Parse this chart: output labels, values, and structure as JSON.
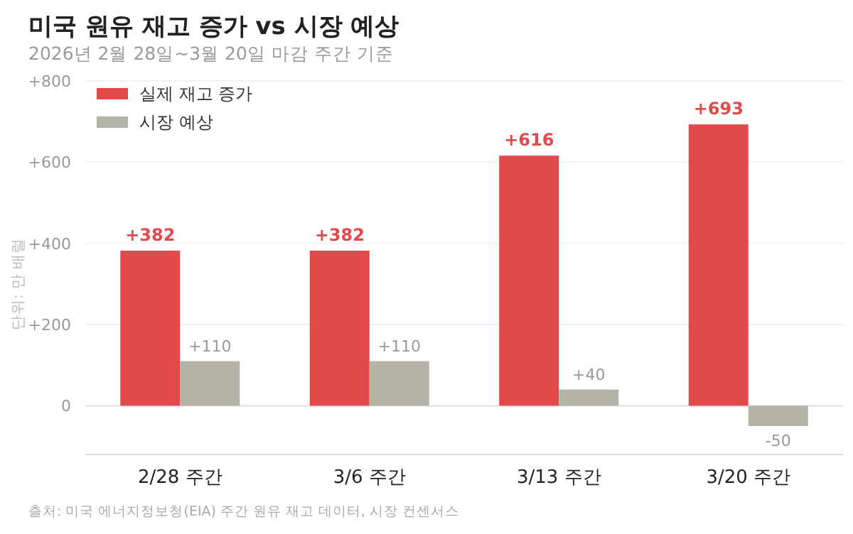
{
  "chart_data": {
    "type": "bar",
    "title": "미국 원유 재고 증가 vs 시장 예상",
    "subtitle": "2026년 2월 28일~3월 20일 마감 주간 기준",
    "ylabel": "단위: 만 배럴",
    "annotations": [
      "출처: 미국 에너지정보청(EIA) 주간 원유 재고 데이터, 시장 컨센서스"
    ],
    "categories": [
      "2/28 주간",
      "3/6 주간",
      "3/13 주간",
      "3/20 주간"
    ],
    "series": [
      {
        "name": "실제 재고 증가",
        "color": "#e04a4a",
        "values": [
          382,
          382,
          616,
          693
        ],
        "value_labels": [
          "+382",
          "+382",
          "+616",
          "+693"
        ]
      },
      {
        "name": "시장 예상",
        "color": "#b5b2a8",
        "values": [
          110,
          110,
          40,
          -50
        ],
        "value_labels": [
          "+110",
          "+110",
          "+40",
          "-50"
        ]
      }
    ],
    "ylim": [
      -120,
      800
    ],
    "yticks": [
      0,
      {
        "value": 200,
        "label": "+200"
      },
      {
        "value": 400,
        "label": "+400"
      },
      {
        "value": 600,
        "label": "+600"
      },
      {
        "value": 800,
        "label": "+800"
      }
    ],
    "grid": "y",
    "legend": "top left"
  }
}
